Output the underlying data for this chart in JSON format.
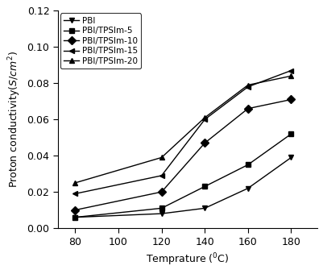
{
  "x": [
    80,
    120,
    140,
    160,
    180
  ],
  "series": {
    "PBI": [
      0.006,
      0.008,
      0.011,
      0.022,
      0.039
    ],
    "PBI/TPSIm-5": [
      0.006,
      0.011,
      0.023,
      0.035,
      0.052
    ],
    "PBI/TPSIm-10": [
      0.01,
      0.02,
      0.047,
      0.066,
      0.071
    ],
    "PBI/TPSIm-15": [
      0.019,
      0.029,
      0.06,
      0.078,
      0.087
    ],
    "PBI/TPSIm-20": [
      0.025,
      0.039,
      0.061,
      0.079,
      0.084
    ]
  },
  "markers": {
    "PBI": "v",
    "PBI/TPSIm-5": "s",
    "PBI/TPSIm-10": "D",
    "PBI/TPSIm-15": "<",
    "PBI/TPSIm-20": "^"
  },
  "markersize": 5,
  "linewidth": 1.0,
  "color": "#000000",
  "title": "",
  "xlabel": "Temprature",
  "ylabel": "Proton conductivity(S/cm²)",
  "ylim": [
    0.0,
    0.12
  ],
  "xlim": [
    72,
    192
  ],
  "xticks": [
    80,
    100,
    120,
    140,
    160,
    180
  ],
  "yticks": [
    0.0,
    0.02,
    0.04,
    0.06,
    0.08,
    0.1,
    0.12
  ],
  "background_color": "#ffffff",
  "legend_loc": "upper left",
  "fontsize": 9,
  "tick_labelsize": 9
}
